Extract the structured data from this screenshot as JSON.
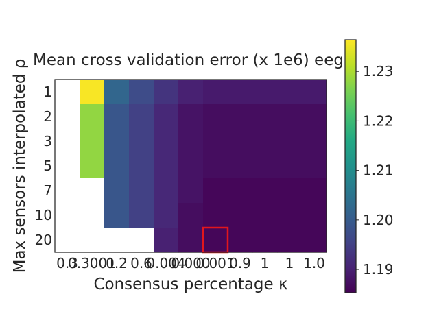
{
  "chart_data": {
    "type": "heatmap",
    "title": "Mean cross validation error (x 1e6) eeg",
    "xlabel": "Consensus percentage κ",
    "ylabel": "Max sensors interpolated ρ",
    "x_tick_labels": [
      "0.3",
      "0.3001",
      "0.2",
      "0.6",
      "0.004",
      "0.000",
      "0.001",
      "0.9",
      "1",
      "1",
      "1.0"
    ],
    "y_tick_labels": [
      "1",
      "2",
      "3",
      "5",
      "7",
      "10",
      "20"
    ],
    "values": [
      [
        null,
        1.236,
        1.202,
        1.197,
        1.193,
        1.19,
        1.189,
        1.189,
        1.189,
        1.189,
        1.189
      ],
      [
        null,
        1.228,
        1.199,
        1.195,
        1.191,
        1.188,
        1.187,
        1.187,
        1.187,
        1.187,
        1.187
      ],
      [
        null,
        1.228,
        1.199,
        1.195,
        1.191,
        1.188,
        1.187,
        1.187,
        1.187,
        1.187,
        1.187
      ],
      [
        null,
        1.228,
        1.199,
        1.195,
        1.191,
        1.188,
        1.187,
        1.187,
        1.187,
        1.187,
        1.187
      ],
      [
        null,
        null,
        1.199,
        1.195,
        1.191,
        1.188,
        1.186,
        1.186,
        1.186,
        1.186,
        1.186
      ],
      [
        null,
        null,
        1.199,
        1.195,
        1.191,
        1.187,
        1.186,
        1.186,
        1.186,
        1.186,
        1.186
      ],
      [
        null,
        null,
        null,
        null,
        1.19,
        1.187,
        1.186,
        1.186,
        1.186,
        1.186,
        1.186
      ]
    ],
    "highlight_cell": {
      "row": 6,
      "col": 6,
      "color": "#e3161c"
    },
    "colorbar": {
      "colormap": "viridis",
      "vmin": 1.1853,
      "vmax": 1.2364,
      "tick_values": [
        1.19,
        1.2,
        1.21,
        1.22,
        1.23
      ],
      "tick_labels": [
        "1.19",
        "1.20",
        "1.21",
        "1.22",
        "1.23"
      ]
    },
    "missing_color": "#ffffff"
  }
}
